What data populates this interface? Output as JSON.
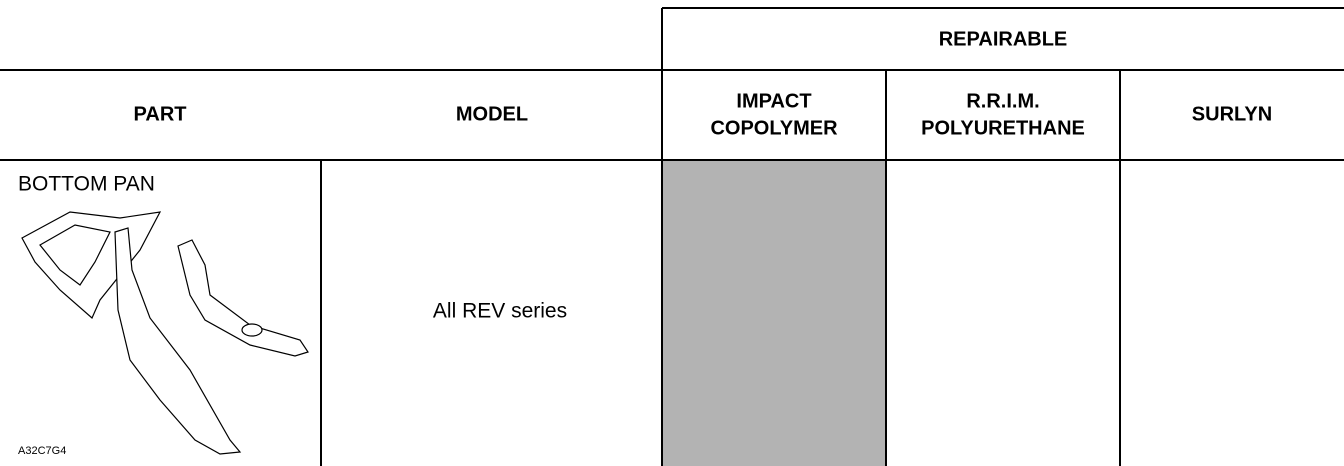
{
  "table": {
    "group_header": "REPAIRABLE",
    "columns": [
      "PART",
      "MODEL",
      [
        "IMPACT",
        "COPOLYMER"
      ],
      [
        "R.R.I.M.",
        "POLYURETHANE"
      ],
      "SURLYN"
    ],
    "rows": [
      {
        "part": "BOTTOM PAN",
        "figure_code": "A32C7G4",
        "model": "All REV series"
      }
    ]
  }
}
